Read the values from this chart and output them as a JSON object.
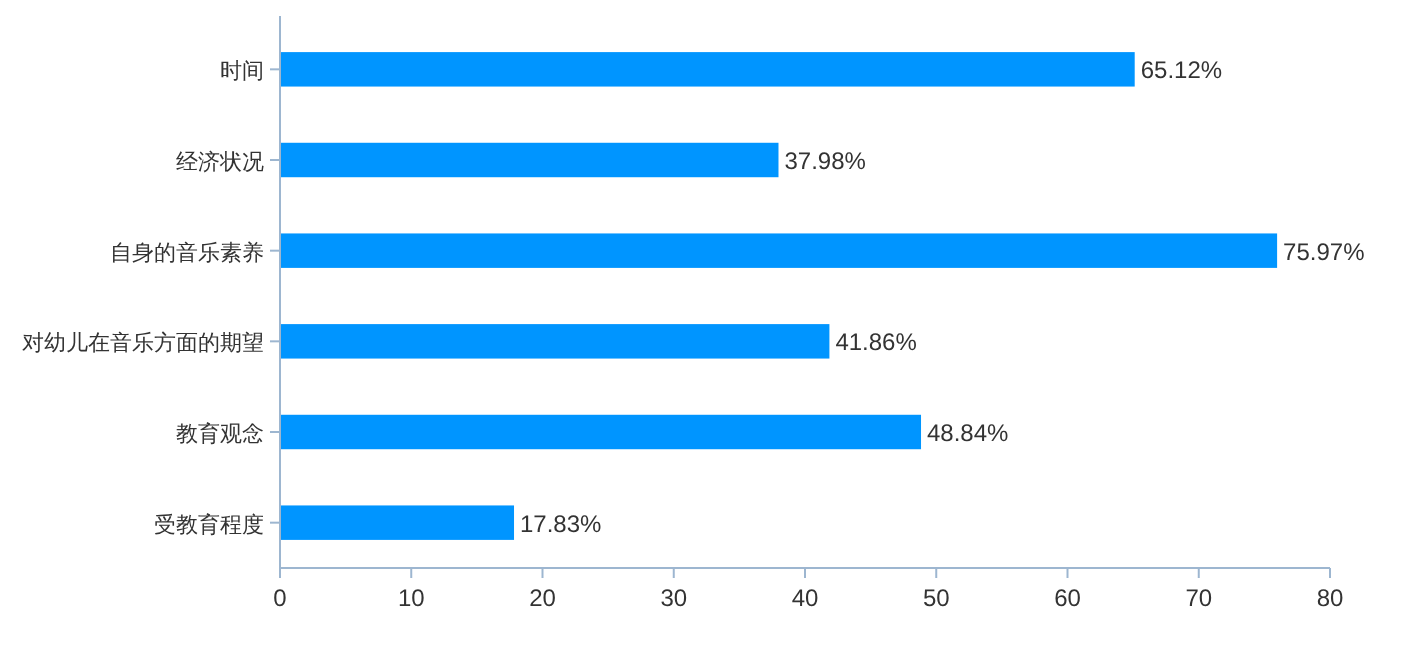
{
  "chart_data": {
    "type": "bar",
    "orientation": "horizontal",
    "categories": [
      "时间",
      "经济状况",
      "自身的音乐素养",
      "对幼儿在音乐方面的期望",
      "教育观念",
      "受教育程度"
    ],
    "values": [
      65.12,
      37.98,
      75.97,
      41.86,
      48.84,
      17.83
    ],
    "color": "#0095ff",
    "xlim": [
      0,
      80
    ],
    "xticks": [
      0,
      10,
      20,
      30,
      40,
      50,
      60,
      70,
      80
    ],
    "data_labels": true,
    "value_labels": [
      "65.12%",
      "37.98%",
      "75.97%",
      "41.86%",
      "48.84%",
      "17.83%"
    ]
  }
}
